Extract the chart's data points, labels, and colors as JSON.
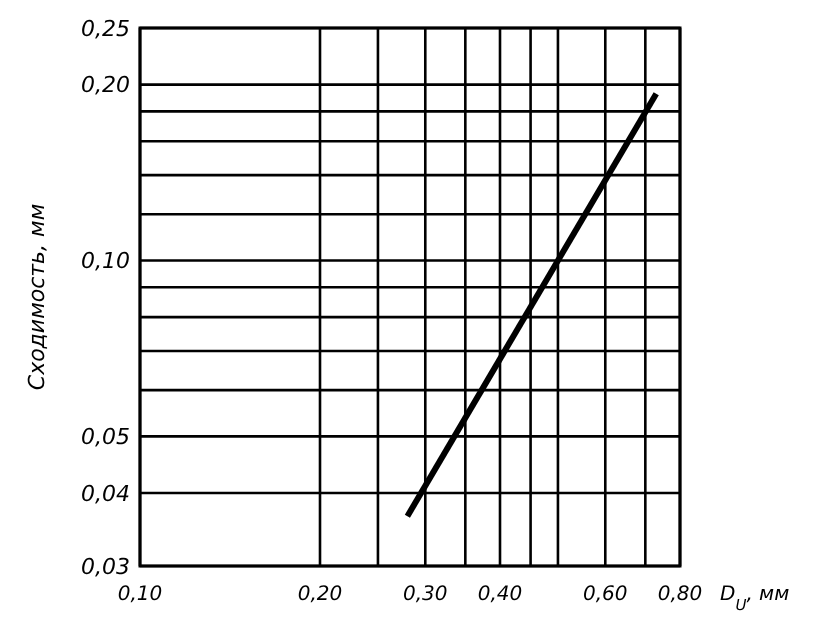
{
  "chart_data": {
    "type": "line",
    "xlabel": "D$_{U}$, мм",
    "ylabel": "Сходимость, мм",
    "log": "xy",
    "grid": true,
    "line_style": "solid",
    "marker": "none",
    "xlim": [
      0.1,
      0.8
    ],
    "xticks": [
      {
        "value": 0.1,
        "label": "0,10"
      },
      {
        "value": 0.2,
        "label": "0,20"
      },
      {
        "value": 0.25,
        "label": null
      },
      {
        "value": 0.3,
        "label": "0,30"
      },
      {
        "value": 0.35,
        "label": null
      },
      {
        "value": 0.4,
        "label": "0,40"
      },
      {
        "value": 0.45,
        "label": null
      },
      {
        "value": 0.5,
        "label": null
      },
      {
        "value": 0.6,
        "label": "0,60"
      },
      {
        "value": 0.7,
        "label": null
      },
      {
        "value": 0.8,
        "label": "0,80"
      }
    ],
    "ylim": [
      0.03,
      0.25
    ],
    "yticks": [
      {
        "value": 0.03,
        "label": "0,03"
      },
      {
        "value": 0.04,
        "label": "0,04"
      },
      {
        "value": 0.05,
        "label": "0,05"
      },
      {
        "value": 0.06,
        "label": null
      },
      {
        "value": 0.07,
        "label": null
      },
      {
        "value": 0.08,
        "label": null
      },
      {
        "value": 0.09,
        "label": null
      },
      {
        "value": 0.1,
        "label": "0,10"
      },
      {
        "value": 0.12,
        "label": null
      },
      {
        "value": 0.14,
        "label": null
      },
      {
        "value": 0.16,
        "label": null
      },
      {
        "value": 0.18,
        "label": null
      },
      {
        "value": 0.2,
        "label": "0,20"
      },
      {
        "value": 0.25,
        "label": "0,25"
      }
    ],
    "series": [
      {
        "color": "#000000",
        "x": [
          0.28,
          0.73
        ],
        "values": [
          0.0365,
          0.193
        ]
      }
    ]
  }
}
